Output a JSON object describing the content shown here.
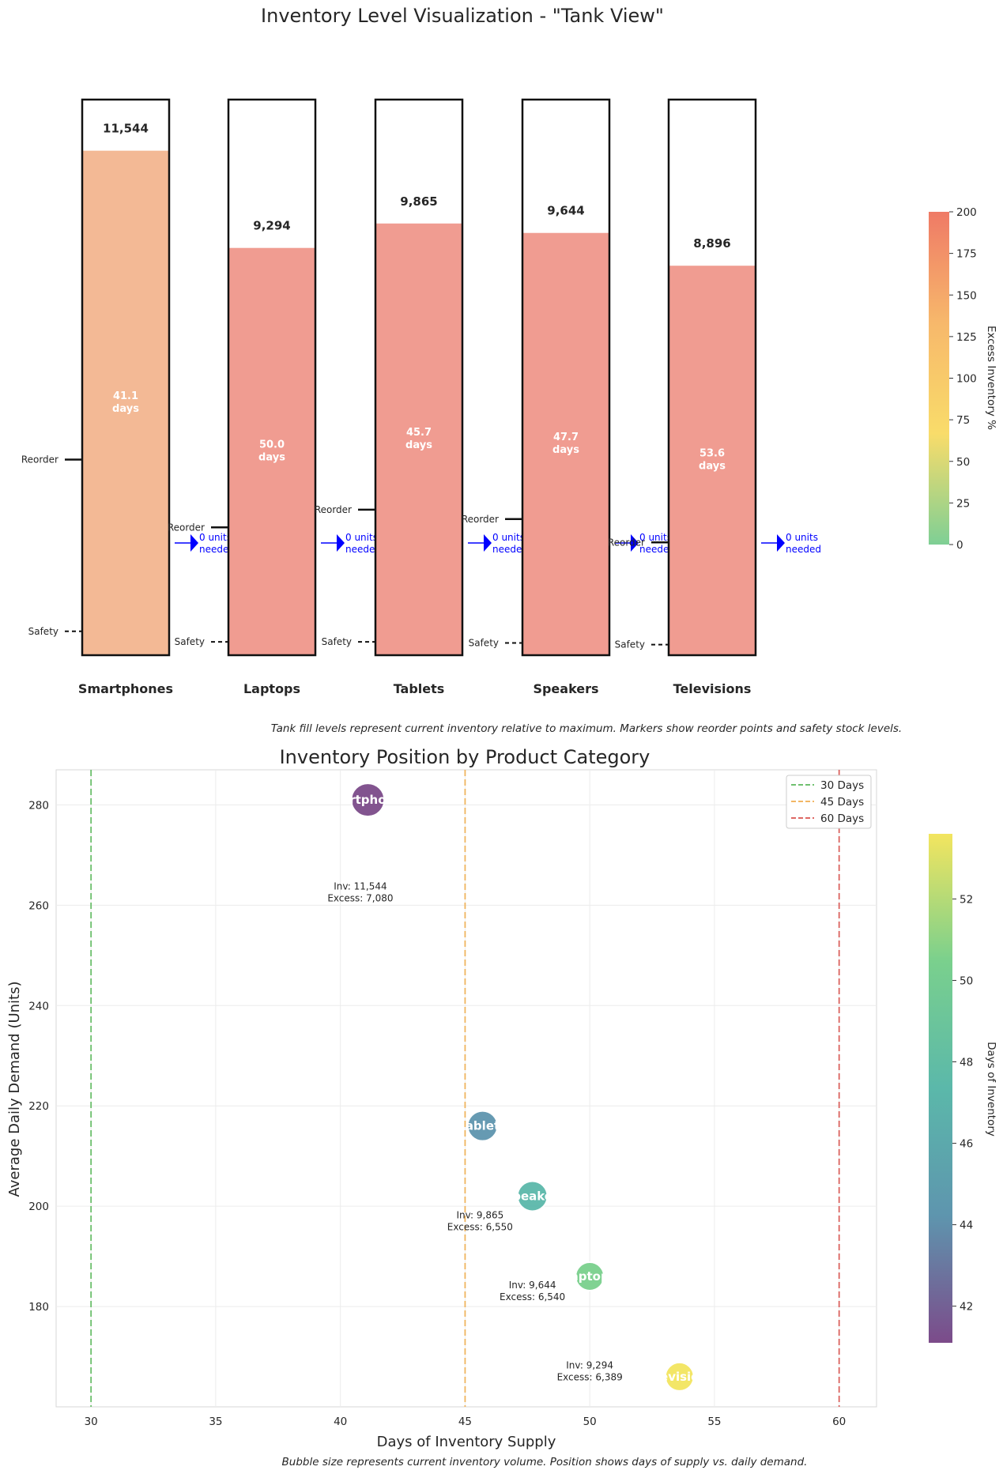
{
  "chart_data": [
    {
      "type": "bar",
      "title": "Inventory Level Visualization - \"Tank View\"",
      "categories": [
        "Smartphones",
        "Laptops",
        "Tablets",
        "Speakers",
        "Televisions"
      ],
      "values": [
        11544,
        9294,
        9865,
        9644,
        8896
      ],
      "value_labels": [
        "11,544",
        "9,294",
        "9,865",
        "9,644",
        "8,896"
      ],
      "fill_fraction": [
        0.908,
        0.733,
        0.777,
        0.76,
        0.701
      ],
      "days_of_supply": [
        "41.1",
        "50.0",
        "45.7",
        "47.7",
        "53.6"
      ],
      "days_unit": "days",
      "reorder_fraction": [
        0.352,
        0.23,
        0.262,
        0.245,
        0.203
      ],
      "safety_fraction": [
        0.043,
        0.024,
        0.024,
        0.022,
        0.019
      ],
      "reorder_label": "Reorder",
      "safety_label": "Safety",
      "needed_line1": [
        "0 units",
        "0 units",
        "0 units",
        "0 units",
        "0 units"
      ],
      "needed_line2": [
        "needed",
        "needed",
        "needed",
        "needed",
        "needed"
      ],
      "fill_colors": [
        "#f3b995",
        "#f09c91",
        "#f09c91",
        "#f09c91",
        "#f09c91"
      ],
      "colorbar": {
        "label": "Excess Inventory %",
        "ticks": [
          "0",
          "25",
          "50",
          "75",
          "100",
          "125",
          "150",
          "175",
          "200"
        ],
        "range": [
          0,
          200
        ],
        "colormap": [
          "#7ecf95",
          "#f9dc6a",
          "#f7b86b",
          "#ef7a66"
        ]
      },
      "caption": "Tank fill levels represent current inventory relative to maximum. Markers show reorder points and safety stock levels."
    },
    {
      "type": "scatter",
      "title": "Inventory Position by Product Category",
      "xlabel": "Days of Inventory Supply",
      "ylabel": "Average Daily Demand (Units)",
      "xlim": [
        28.6,
        61.5
      ],
      "ylim": [
        160,
        287
      ],
      "xticks": [
        "30",
        "35",
        "40",
        "45",
        "50",
        "55",
        "60"
      ],
      "yticks": [
        "180",
        "200",
        "220",
        "240",
        "260",
        "280"
      ],
      "grid": true,
      "points": [
        {
          "x": 41.1,
          "y": 281,
          "label": "rtpho",
          "color": "#7c4b8a",
          "size_r": 21
        },
        {
          "x": 45.7,
          "y": 216,
          "label": "ablet",
          "color": "#5e95ae",
          "size_r": 19
        },
        {
          "x": 47.7,
          "y": 202,
          "label": "peake",
          "color": "#5bb8aa",
          "size_r": 19
        },
        {
          "x": 50.0,
          "y": 186,
          "label": "aptop",
          "color": "#7ad08d",
          "size_r": 18
        },
        {
          "x": 53.6,
          "y": 166,
          "label": "evisio",
          "color": "#f3e55f",
          "size_r": 18
        }
      ],
      "annotations": [
        {
          "x": 40.8,
          "y": 262,
          "line1": "Inv: 11,544",
          "line2": "Excess: 7,080"
        },
        {
          "x": 45.6,
          "y": 196.5,
          "line1": "Inv: 9,865",
          "line2": "Excess: 6,550"
        },
        {
          "x": 47.7,
          "y": 182.5,
          "line1": "Inv: 9,644",
          "line2": "Excess: 6,540"
        },
        {
          "x": 50.0,
          "y": 166.5,
          "line1": "Inv: 9,294",
          "line2": "Excess: 6,389"
        }
      ],
      "reference_lines": [
        {
          "x": 30,
          "name": "30 Days",
          "color": "#5cb85c"
        },
        {
          "x": 45,
          "name": "45 Days",
          "color": "#f0ad4e"
        },
        {
          "x": 60,
          "name": "60 Days",
          "color": "#d9534f"
        }
      ],
      "legend_position": "top-right",
      "colorbar": {
        "label": "Days of Inventory",
        "ticks": [
          "42",
          "44",
          "46",
          "48",
          "50",
          "52"
        ],
        "tick_values": [
          42,
          44,
          46,
          48,
          50,
          52
        ],
        "range": [
          41.1,
          53.6
        ],
        "colormap": [
          "#7c4b8a",
          "#5e95ae",
          "#5bb8aa",
          "#7ad08d",
          "#f3e55f"
        ]
      },
      "caption": "Bubble size represents current inventory volume. Position shows days of supply vs. daily demand."
    }
  ]
}
